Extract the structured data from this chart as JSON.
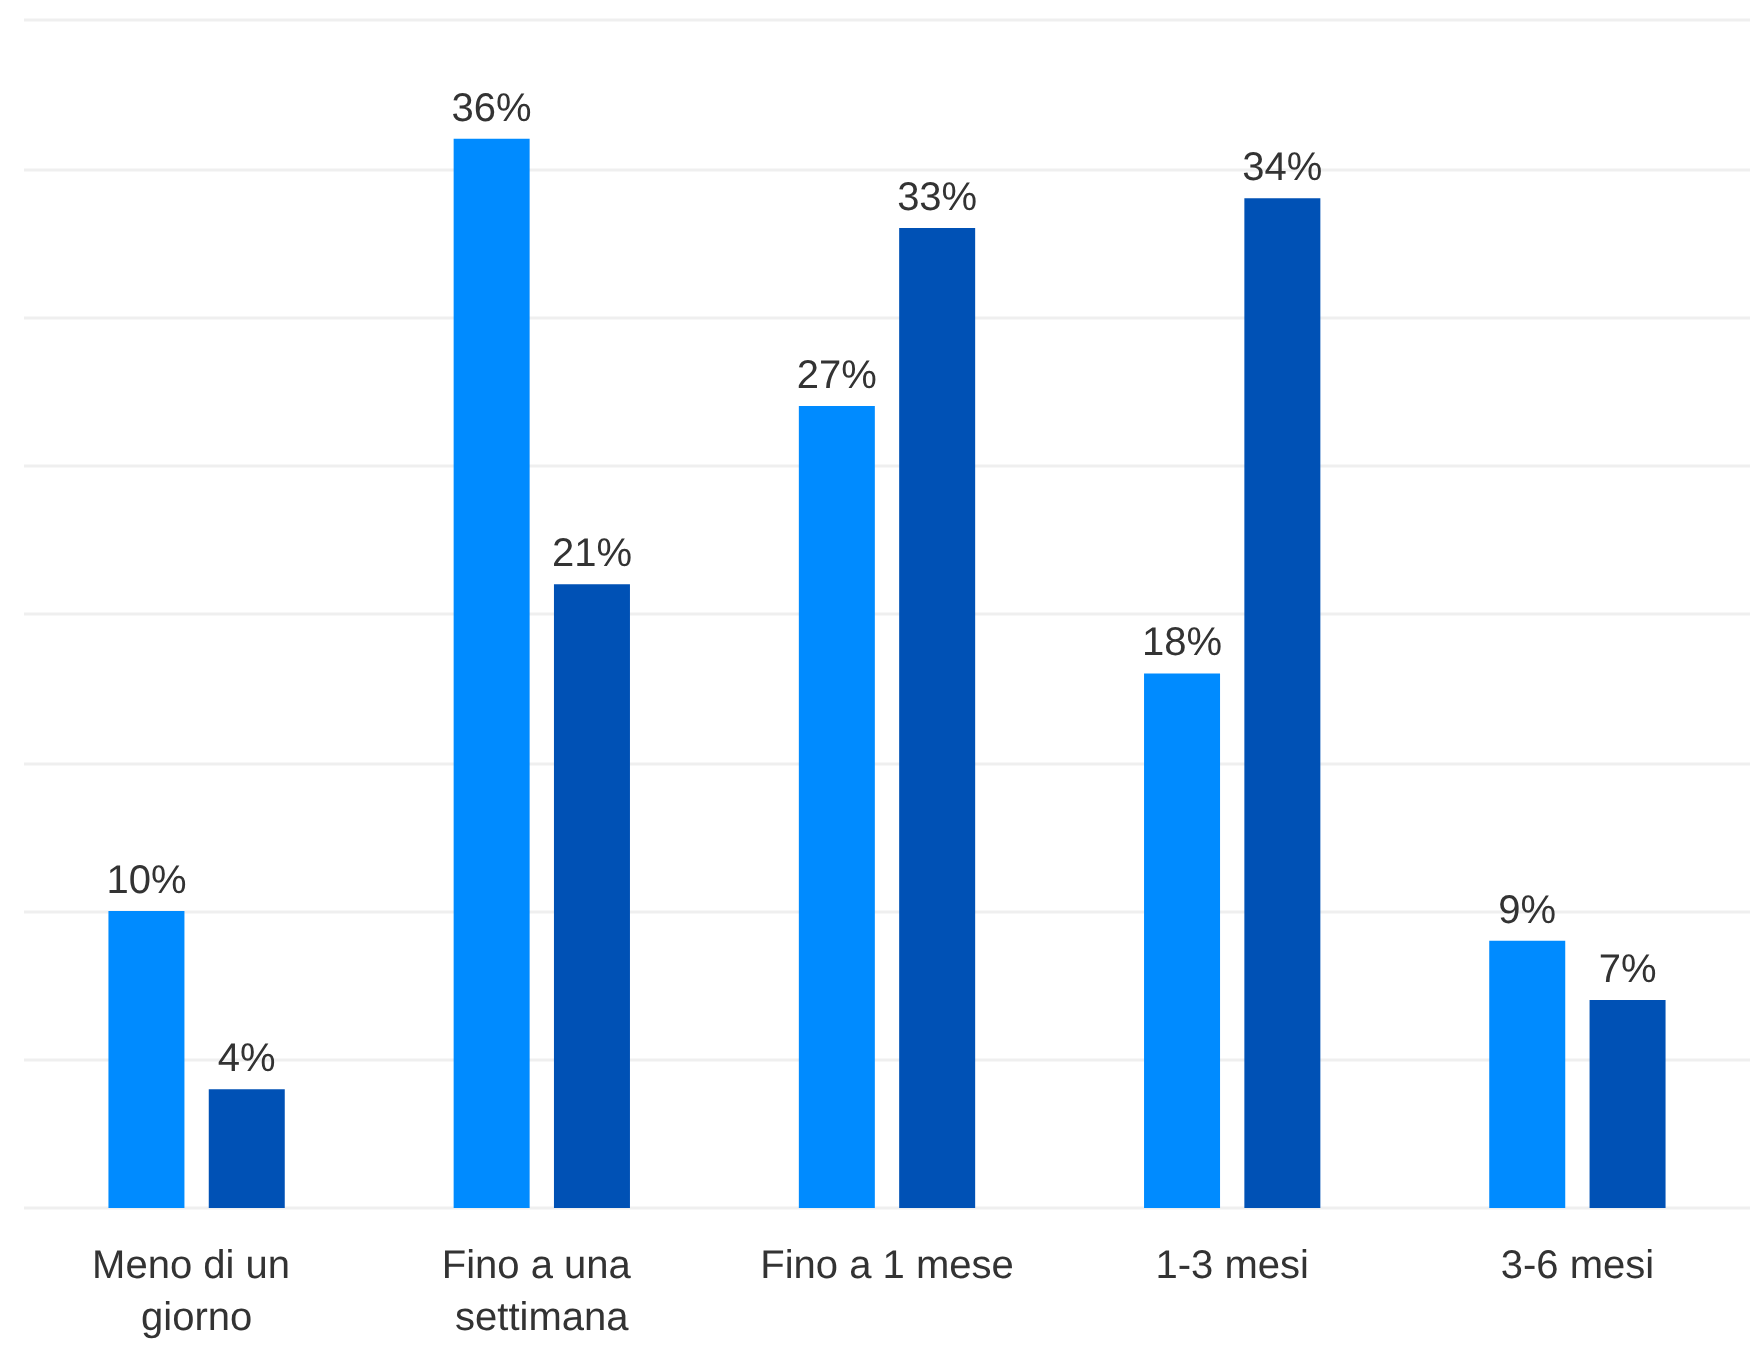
{
  "chart_data": {
    "type": "bar",
    "categories": [
      "Meno di un giorno",
      "Fino a una settimana",
      "Fino a 1 mese",
      "1-3 mesi",
      "3-6 mesi"
    ],
    "series": [
      {
        "color": "#008bff",
        "values": [
          10,
          36,
          27,
          18,
          9
        ],
        "value_labels": [
          "10%",
          "36%",
          "27%",
          "18%",
          "9%"
        ]
      },
      {
        "color": "#0051b5",
        "values": [
          4,
          21,
          33,
          34,
          7
        ],
        "value_labels": [
          "4%",
          "21%",
          "33%",
          "34%",
          "7%"
        ]
      }
    ],
    "ylim": [
      0,
      40
    ],
    "yticks": [
      {
        "value": 0,
        "label": null
      },
      {
        "value": 5,
        "label": null
      },
      {
        "value": 10,
        "label": null
      },
      {
        "value": 15,
        "label": null
      },
      {
        "value": 20,
        "label": null
      },
      {
        "value": 25,
        "label": null
      },
      {
        "value": 30,
        "label": null
      },
      {
        "value": 35,
        "label": null
      },
      {
        "value": 40,
        "label": null
      }
    ],
    "grid": "y",
    "tick_labels": "x"
  }
}
